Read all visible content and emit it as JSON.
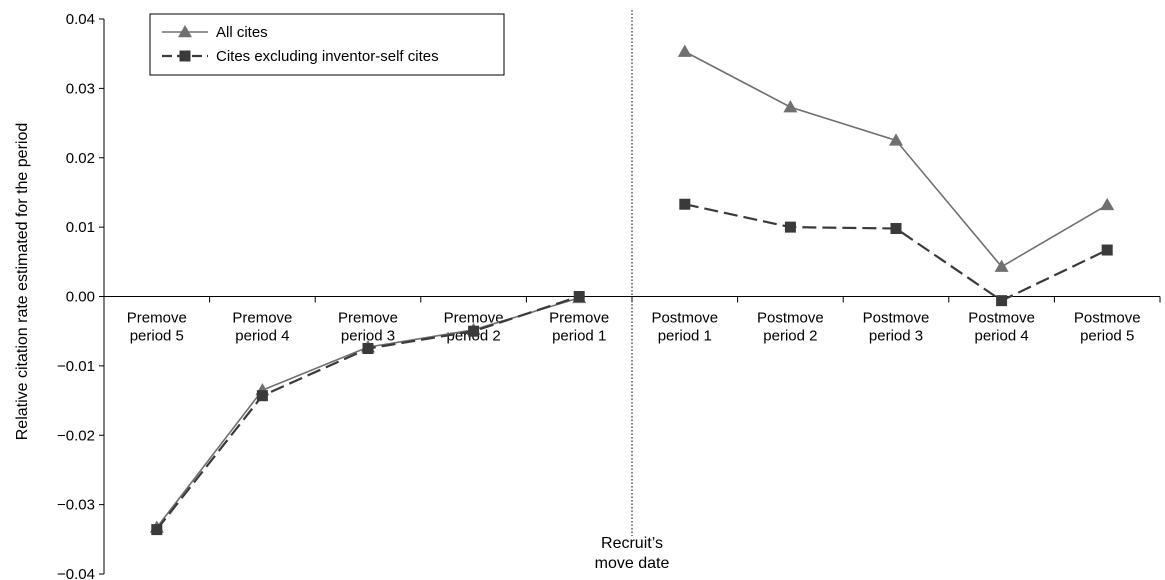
{
  "chart_data": {
    "type": "line",
    "title": "",
    "xlabel": "",
    "ylabel": "Relative citation rate estimated for the period",
    "ylim": [
      -0.04,
      0.04
    ],
    "yticks": [
      "0.04",
      "0.03",
      "0.02",
      "0.01",
      "0.00",
      "−0.01",
      "−0.02",
      "−0.03",
      "−0.04"
    ],
    "ytick_values": [
      0.04,
      0.03,
      0.02,
      0.01,
      0.0,
      -0.01,
      -0.02,
      -0.03,
      -0.04
    ],
    "categories": [
      [
        "Premove",
        "period 5"
      ],
      [
        "Premove",
        "period 4"
      ],
      [
        "Premove",
        "period 3"
      ],
      [
        "Premove",
        "period 2"
      ],
      [
        "Premove",
        "period 1"
      ],
      [
        "Postmove",
        "period 1"
      ],
      [
        "Postmove",
        "period 2"
      ],
      [
        "Postmove",
        "period 3"
      ],
      [
        "Postmove",
        "period 4"
      ],
      [
        "Postmove",
        "period 5"
      ]
    ],
    "series": [
      {
        "name": "All cites",
        "marker": "triangle",
        "line_style": "solid",
        "color": "#707070",
        "segments": [
          [
            -0.0333,
            -0.0135,
            -0.0073,
            -0.0048,
            -0.0002
          ],
          [
            0.0353,
            0.0273,
            0.0225,
            0.0043,
            0.0132
          ]
        ]
      },
      {
        "name": "Cites excluding inventor-self cites",
        "marker": "square",
        "line_style": "dashed",
        "color": "#3a3a3a",
        "segments": [
          [
            -0.0336,
            -0.0143,
            -0.0075,
            -0.005,
            0.0
          ],
          [
            0.0133,
            0.01,
            0.0098,
            -0.0006,
            0.0067
          ]
        ]
      }
    ],
    "legend_position": "top-left",
    "grid": false,
    "annotation": {
      "lines": [
        "Recruit’s",
        "move date"
      ],
      "position": "between Premove period 1 and Postmove period 1"
    }
  }
}
